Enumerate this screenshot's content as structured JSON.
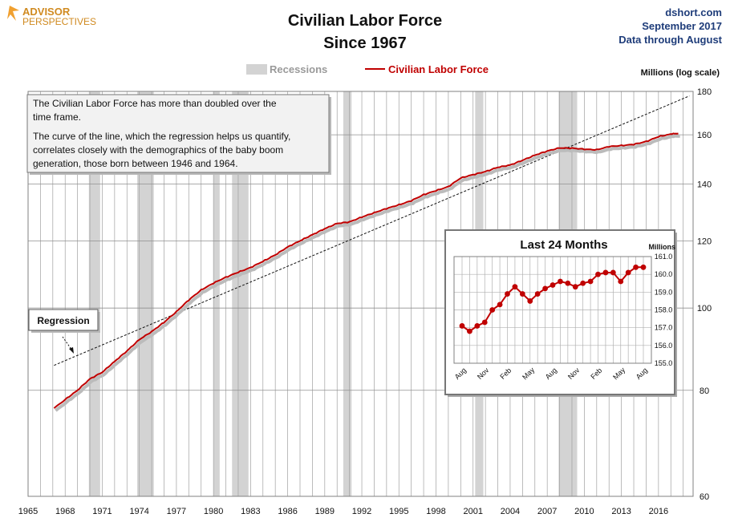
{
  "logo": {
    "line1": "ADVISOR",
    "line2": "PERSPECTIVES"
  },
  "header": {
    "title_line1": "Civilian Labor Force",
    "title_line2": "Since 1967",
    "source_line1": "dshort.com",
    "source_line2": "September 2017",
    "source_line3": "Data through August"
  },
  "legend": {
    "recessions": "Recessions",
    "series": "Civilian Labor Force"
  },
  "colors": {
    "series": "#c00000",
    "recession": "#d3d3d3",
    "grid": "#a0a0a0"
  },
  "note": {
    "para1_line1": "The Civilian Labor Force has more than doubled over the",
    "para1_line2": "time frame.",
    "para2_line1": "The curve of the line, which the regression helps us quantify,",
    "para2_line2": "correlates closely with the demographics of the baby boom",
    "para2_line3": "generation, those born between 1946 and 1964."
  },
  "regression_label": "Regression",
  "chart_data": [
    {
      "type": "line",
      "title": "Civilian Labor Force Since 1967",
      "ylabel": "Millions (log scale)",
      "y_scale": "log",
      "xlim": [
        1965,
        2018.8
      ],
      "ylim": [
        60,
        180
      ],
      "y_ticks": [
        60,
        80,
        100,
        120,
        140,
        160,
        180
      ],
      "x_ticks": [
        1965,
        1968,
        1971,
        1974,
        1977,
        1980,
        1983,
        1986,
        1989,
        1992,
        1995,
        1998,
        2001,
        2004,
        2007,
        2010,
        2013,
        2016
      ],
      "grid": true,
      "recessions": [
        [
          1969.92,
          1970.83
        ],
        [
          1973.83,
          1975.17
        ],
        [
          1980.0,
          1980.5
        ],
        [
          1981.5,
          1982.83
        ],
        [
          1990.5,
          1991.17
        ],
        [
          2001.17,
          2001.83
        ],
        [
          2007.92,
          2009.42
        ]
      ],
      "series": [
        {
          "name": "Civilian Labor Force",
          "x": [
            1967.1,
            1968,
            1969,
            1970,
            1971,
            1972,
            1973,
            1974,
            1975,
            1976,
            1977,
            1978,
            1979,
            1980,
            1981,
            1982,
            1983,
            1984,
            1985,
            1986,
            1987,
            1988,
            1989,
            1990,
            1991,
            1992,
            1993,
            1994,
            1995,
            1996,
            1997,
            1998,
            1999,
            2000,
            2001,
            2002,
            2003,
            2004,
            2005,
            2006,
            2007,
            2008,
            2009,
            2010,
            2011,
            2012,
            2013,
            2014,
            2015,
            2016,
            2017,
            2017.6
          ],
          "values": [
            76.2,
            78.0,
            80.0,
            82.5,
            84.0,
            86.5,
            89.0,
            91.8,
            93.8,
            96.2,
            99.0,
            102.2,
            105.0,
            107.0,
            108.7,
            110.2,
            111.6,
            113.5,
            115.5,
            118.0,
            120.0,
            122.0,
            124.0,
            125.8,
            126.3,
            128.0,
            129.5,
            131.0,
            132.3,
            133.8,
            136.0,
            137.5,
            139.0,
            142.3,
            143.6,
            144.8,
            146.5,
            147.4,
            149.3,
            151.4,
            153.1,
            154.4,
            154.3,
            153.9,
            153.6,
            155.0,
            155.4,
            155.9,
            157.1,
            159.2,
            160.3,
            160.6
          ]
        },
        {
          "name": "Regression",
          "x": [
            1967.1,
            2018.5
          ],
          "values": [
            85.6,
            177.8
          ]
        }
      ]
    },
    {
      "type": "line",
      "title": "Last 24 Months",
      "ylabel": "Millions",
      "ylim": [
        155.0,
        161.0
      ],
      "y_ticks": [
        155.0,
        156.0,
        157.0,
        158.0,
        159.0,
        160.0,
        161.0
      ],
      "categories": [
        "Aug",
        "",
        "",
        "Nov",
        "",
        "",
        "Feb",
        "",
        "",
        "May",
        "",
        "",
        "Aug",
        "",
        "",
        "Nov",
        "",
        "",
        "Feb",
        "",
        "",
        "May",
        "",
        "",
        "Aug"
      ],
      "grid": true,
      "series": [
        {
          "name": "Civilian Labor Force",
          "values": [
            157.1,
            156.8,
            157.1,
            157.3,
            158.0,
            158.3,
            158.9,
            159.3,
            158.9,
            158.5,
            158.9,
            159.2,
            159.4,
            159.6,
            159.5,
            159.3,
            159.5,
            159.6,
            160.0,
            160.1,
            160.1,
            159.6,
            160.1,
            160.4,
            160.4
          ]
        }
      ]
    }
  ]
}
